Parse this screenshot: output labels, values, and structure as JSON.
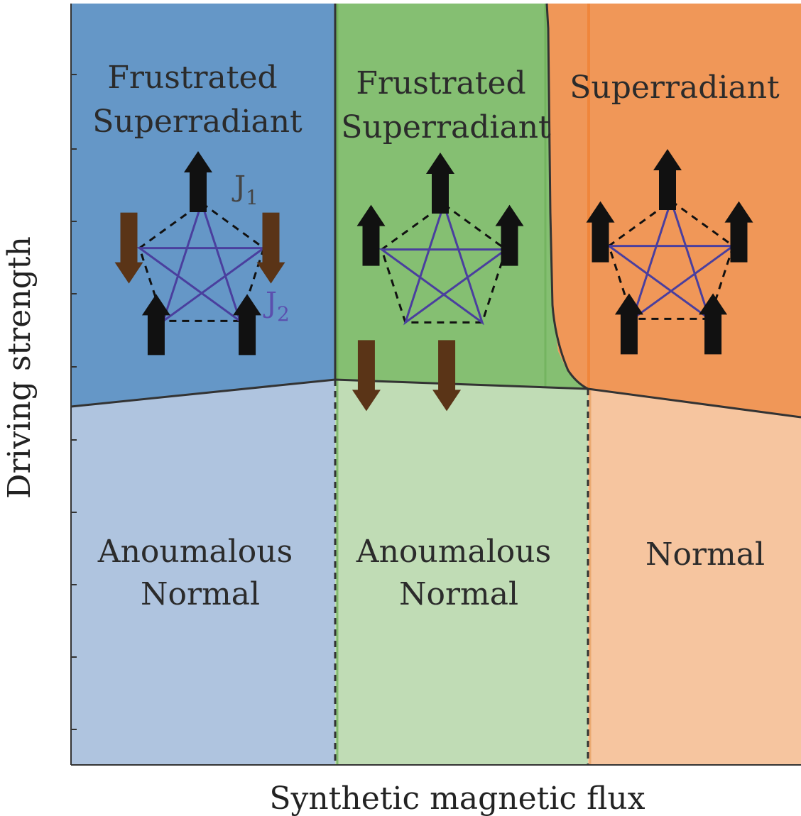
{
  "axes": {
    "xlabel": "Synthetic magnetic flux",
    "ylabel": "Driving strength"
  },
  "regions": {
    "left_upper": {
      "label_lines": [
        "Frustrated",
        "Superradiant"
      ]
    },
    "middle_upper": {
      "label_lines": [
        "Frustrated",
        "Superradiant"
      ]
    },
    "right_upper": {
      "label_lines": [
        "Superradiant"
      ]
    },
    "left_lower": {
      "label_lines": [
        "Anoumalous",
        "Normal"
      ]
    },
    "middle_lower": {
      "label_lines": [
        "Anoumalous",
        "Normal"
      ]
    },
    "right_lower": {
      "label_lines": [
        "Normal"
      ]
    }
  },
  "couplings": {
    "j1": {
      "base": "J",
      "sub": "1"
    },
    "j2": {
      "base": "J",
      "sub": "2"
    }
  },
  "spin_configurations": {
    "left": [
      "up",
      "down",
      "up",
      "up",
      "down"
    ],
    "middle": [
      "up",
      "up",
      "down",
      "down",
      "up"
    ],
    "right": [
      "up",
      "up",
      "up",
      "up",
      "up"
    ]
  },
  "colors": {
    "blue_dark": "#6597c7",
    "blue_light": "#afc4df",
    "green_dark": "#85bf72",
    "green_light": "#c0dcb5",
    "orange_dark": "#f09758",
    "orange_light": "#f6c59f",
    "spin_up": "#111111",
    "spin_down": "#5a3417",
    "star_edges": "#4a3f9e",
    "j2_label": "#5b4fae",
    "boundary": "#333333"
  }
}
